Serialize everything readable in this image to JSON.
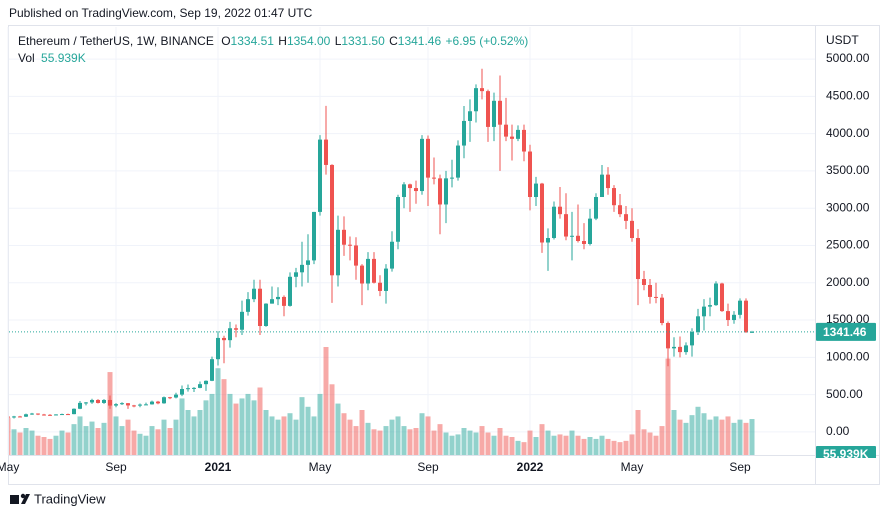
{
  "chart_data": {
    "type": "candlestick",
    "published": "Published on TradingView.com, Sep 19, 2022 01:47 UTC",
    "title": "Ethereum / TetherUS, 1W, BINANCE",
    "ohlc_names": [
      "O",
      "H",
      "L",
      "C"
    ],
    "ohlc_texts": [
      "1334.51",
      "1354.00",
      "1331.50",
      "1341.46"
    ],
    "change_label": "+6.95 (+0.52%)",
    "y_axis_label": "USDT",
    "brand": "TradingView",
    "categories": [
      "May",
      null,
      null,
      null,
      null,
      null,
      null,
      null,
      null,
      null,
      null,
      null,
      null,
      null,
      null,
      null,
      null,
      null,
      "Sep",
      null,
      null,
      null,
      null,
      null,
      null,
      null,
      null,
      null,
      null,
      null,
      null,
      null,
      null,
      null,
      null,
      "2021",
      null,
      null,
      null,
      null,
      null,
      null,
      null,
      null,
      null,
      null,
      null,
      null,
      null,
      null,
      null,
      null,
      "May",
      null,
      null,
      null,
      null,
      null,
      null,
      null,
      null,
      null,
      null,
      null,
      null,
      null,
      null,
      null,
      null,
      null,
      "Sep",
      null,
      null,
      null,
      null,
      null,
      null,
      null,
      null,
      null,
      null,
      null,
      null,
      null,
      null,
      null,
      null,
      "2022",
      null,
      null,
      null,
      null,
      null,
      null,
      null,
      null,
      null,
      null,
      null,
      null,
      null,
      null,
      null,
      null,
      "May",
      null,
      null,
      null,
      null,
      null,
      null,
      null,
      null,
      null,
      null,
      null,
      null,
      null,
      null,
      null,
      null,
      null,
      "Sep",
      null,
      null
    ],
    "open": [
      206,
      205,
      207,
      204,
      236,
      246,
      233,
      229,
      225,
      234,
      239,
      238,
      310,
      389,
      395,
      428,
      388,
      428,
      353,
      372,
      385,
      355,
      353,
      366,
      369,
      406,
      383,
      465,
      461,
      500,
      575,
      586,
      590,
      640,
      685,
      975,
      1260,
      1230,
      1390,
      1370,
      1610,
      1780,
      1920,
      1420,
      1720,
      1780,
      1810,
      1690,
      2080,
      2140,
      2240,
      2300,
      2950,
      3920,
      3580,
      2100,
      2710,
      2510,
      2500,
      2230,
      1990,
      2320,
      2000,
      1890,
      2190,
      2550,
      3150,
      3320,
      3270,
      3230,
      3930,
      3410,
      3400,
      3050,
      3400,
      3410,
      3840,
      4170,
      4300,
      4610,
      4570,
      4090,
      4440,
      4120,
      3960,
      3930,
      4050,
      3760,
      3150,
      3330,
      2540,
      2600,
      3020,
      2920,
      2620,
      2630,
      2560,
      2520,
      2860,
      3150,
      3450,
      3270,
      3040,
      2920,
      2830,
      2600,
      2050,
      1970,
      1810,
      1800,
      1460,
      1120,
      1140,
      1070,
      1160,
      1340,
      1550,
      1680,
      1700,
      1990,
      1620,
      1500,
      1570,
      1760,
      1334.51
    ],
    "high": [
      216,
      215,
      215,
      245,
      255,
      249,
      242,
      238,
      237,
      245,
      245,
      315,
      415,
      400,
      445,
      440,
      440,
      488,
      385,
      397,
      387,
      362,
      380,
      392,
      420,
      416,
      475,
      470,
      525,
      622,
      635,
      600,
      675,
      690,
      1010,
      1350,
      1290,
      1475,
      1440,
      1760,
      1875,
      2040,
      2040,
      1725,
      1950,
      1940,
      1830,
      2140,
      2200,
      2550,
      2650,
      2950,
      3980,
      4372,
      3590,
      2900,
      2890,
      2620,
      2610,
      2250,
      2410,
      2410,
      2100,
      2250,
      2690,
      3180,
      3350,
      3330,
      3370,
      3980,
      3975,
      3680,
      3450,
      3500,
      3650,
      3910,
      4370,
      4460,
      4660,
      4870,
      4590,
      4550,
      4780,
      4480,
      4120,
      4110,
      4120,
      3850,
      3420,
      3340,
      2730,
      3090,
      3285,
      3200,
      2950,
      3050,
      2800,
      2990,
      3200,
      3580,
      3550,
      3310,
      3190,
      3030,
      3000,
      2720,
      2160,
      2050,
      2000,
      1850,
      1480,
      1270,
      1280,
      1200,
      1390,
      1650,
      1780,
      1800,
      2020,
      2000,
      1720,
      1620,
      1790,
      1790,
      1354
    ],
    "low": [
      185,
      180,
      195,
      200,
      228,
      225,
      218,
      215,
      222,
      232,
      230,
      236,
      305,
      356,
      375,
      380,
      375,
      310,
      330,
      360,
      308,
      330,
      330,
      360,
      365,
      370,
      377,
      440,
      450,
      480,
      540,
      535,
      585,
      550,
      680,
      890,
      920,
      1130,
      1270,
      1300,
      1560,
      1740,
      1300,
      1410,
      1720,
      1700,
      1550,
      1680,
      1940,
      1950,
      2000,
      2250,
      2900,
      3450,
      1730,
      1950,
      2360,
      2300,
      2040,
      1700,
      1900,
      1990,
      1820,
      1720,
      2150,
      2450,
      3000,
      2950,
      3060,
      3180,
      3030,
      3320,
      2650,
      2800,
      3280,
      3370,
      3670,
      3890,
      4150,
      4460,
      3890,
      3900,
      3500,
      3900,
      3640,
      3900,
      3630,
      2970,
      3030,
      2400,
      2160,
      2580,
      2860,
      2570,
      2300,
      2540,
      2450,
      2500,
      2840,
      3150,
      3180,
      2950,
      2880,
      2720,
      2550,
      1700,
      1900,
      1720,
      1725,
      1430,
      880,
      1010,
      1000,
      1035,
      1010,
      1300,
      1360,
      1550,
      1690,
      1610,
      1420,
      1450,
      1520,
      1330,
      1331.5
    ],
    "close": [
      205,
      207,
      204,
      236,
      246,
      233,
      229,
      225,
      234,
      239,
      238,
      310,
      389,
      395,
      428,
      388,
      428,
      353,
      372,
      385,
      355,
      353,
      366,
      369,
      406,
      383,
      465,
      461,
      500,
      575,
      586,
      590,
      640,
      685,
      975,
      1260,
      1230,
      1390,
      1370,
      1610,
      1780,
      1920,
      1420,
      1720,
      1780,
      1810,
      1690,
      2080,
      2140,
      2240,
      2300,
      2950,
      3920,
      3580,
      2100,
      2710,
      2510,
      2500,
      2230,
      1990,
      2320,
      2000,
      1890,
      2190,
      2550,
      3150,
      3320,
      3270,
      3230,
      3930,
      3410,
      3400,
      3050,
      3400,
      3410,
      3840,
      4170,
      4300,
      4610,
      4570,
      4090,
      4440,
      4120,
      3960,
      3930,
      4050,
      3760,
      3150,
      3330,
      2540,
      2600,
      3020,
      2920,
      2620,
      2630,
      2560,
      2520,
      2860,
      3150,
      3450,
      3270,
      3040,
      2920,
      2830,
      2600,
      2050,
      1970,
      1810,
      1800,
      1460,
      1120,
      1140,
      1070,
      1160,
      1340,
      1550,
      1680,
      1700,
      1990,
      1620,
      1500,
      1570,
      1760,
      1335,
      1341.46
    ],
    "volume": {
      "name": "Vol",
      "label": "55.939K",
      "values": [
        58000,
        40000,
        35000,
        42000,
        38000,
        30000,
        28000,
        25000,
        30000,
        38000,
        35000,
        48000,
        60000,
        45000,
        52000,
        42000,
        50000,
        129000,
        60000,
        45000,
        55000,
        38000,
        33000,
        30000,
        45000,
        40000,
        55000,
        42000,
        55000,
        88000,
        70000,
        60000,
        70000,
        85000,
        95000,
        135000,
        118000,
        95000,
        80000,
        88000,
        95000,
        85000,
        105000,
        70000,
        60000,
        55000,
        60000,
        65000,
        55000,
        90000,
        75000,
        60000,
        95000,
        168000,
        110000,
        80000,
        65000,
        55000,
        45000,
        70000,
        50000,
        40000,
        38000,
        45000,
        55000,
        60000,
        45000,
        40000,
        42000,
        65000,
        60000,
        38000,
        48000,
        35000,
        30000,
        32000,
        42000,
        38000,
        35000,
        45000,
        35000,
        30000,
        42000,
        30000,
        28000,
        22000,
        20000,
        38000,
        28000,
        48000,
        38000,
        30000,
        32000,
        30000,
        38000,
        30000,
        25000,
        28000,
        25000,
        30000,
        25000,
        22000,
        20000,
        22000,
        32000,
        70000,
        40000,
        35000,
        30000,
        45000,
        150000,
        70000,
        55000,
        50000,
        62000,
        75000,
        65000,
        55000,
        60000,
        55000,
        60000,
        50000,
        55000,
        50000,
        55939
      ]
    },
    "up_color": "#26a69a",
    "down_color": "#ef5350",
    "ylim": [
      -310,
      5430
    ],
    "yticks": [
      {
        "value": 0,
        "label": "0.00"
      },
      {
        "value": 500,
        "label": "500.00"
      },
      {
        "value": 1000,
        "label": "1000.00"
      },
      {
        "value": 1500,
        "label": "1500.00"
      },
      {
        "value": 2000,
        "label": "2000.00"
      },
      {
        "value": 2500,
        "label": "2500.00"
      },
      {
        "value": 3000,
        "label": "3000.00"
      },
      {
        "value": 3500,
        "label": "3500.00"
      },
      {
        "value": 4000,
        "label": "4000.00"
      },
      {
        "value": 4500,
        "label": "4500.00"
      },
      {
        "value": 5000,
        "label": "5000.00"
      }
    ],
    "grid": true
  }
}
